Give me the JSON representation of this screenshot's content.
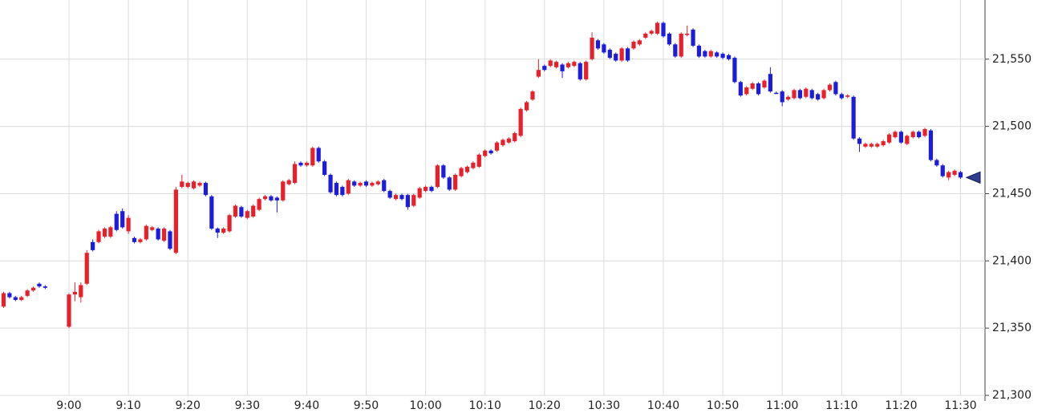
{
  "chart_data": {
    "type": "candlestick",
    "up_color": "#e8202a",
    "down_color": "#1c1cdc",
    "grid": true,
    "ylim": [
      21300,
      21594
    ],
    "yticks": [
      {
        "value": 21300,
        "label": "21,300"
      },
      {
        "value": 21350,
        "label": "21,350"
      },
      {
        "value": 21400,
        "label": "21,400"
      },
      {
        "value": 21450,
        "label": "21,450"
      },
      {
        "value": 21500,
        "label": "21,500"
      },
      {
        "value": 21550,
        "label": "21,550"
      }
    ],
    "xticks": [
      "9:00",
      "9:10",
      "9:20",
      "9:30",
      "9:40",
      "9:50",
      "10:00",
      "10:10",
      "10:20",
      "10:30",
      "10:40",
      "10:50",
      "11:00",
      "11:10",
      "11:20",
      "11:30"
    ],
    "x": [
      "8:49",
      "8:50",
      "8:51",
      "8:52",
      "8:53",
      "8:54",
      "8:55",
      "8:56",
      "9:00",
      "9:01",
      "9:02",
      "9:03",
      "9:04",
      "9:05",
      "9:06",
      "9:07",
      "9:08",
      "9:09",
      "9:10",
      "9:11",
      "9:12",
      "9:13",
      "9:14",
      "9:15",
      "9:16",
      "9:17",
      "9:18",
      "9:19",
      "9:20",
      "9:21",
      "9:22",
      "9:23",
      "9:24",
      "9:25",
      "9:26",
      "9:27",
      "9:28",
      "9:29",
      "9:30",
      "9:31",
      "9:32",
      "9:33",
      "9:34",
      "9:35",
      "9:36",
      "9:37",
      "9:38",
      "9:39",
      "9:40",
      "9:41",
      "9:42",
      "9:43",
      "9:44",
      "9:45",
      "9:46",
      "9:47",
      "9:48",
      "9:49",
      "9:50",
      "9:51",
      "9:52",
      "9:53",
      "9:54",
      "9:55",
      "9:56",
      "9:57",
      "9:58",
      "9:59",
      "10:00",
      "10:01",
      "10:02",
      "10:03",
      "10:04",
      "10:05",
      "10:06",
      "10:07",
      "10:08",
      "10:09",
      "10:10",
      "10:11",
      "10:12",
      "10:13",
      "10:14",
      "10:15",
      "10:16",
      "10:17",
      "10:18",
      "10:19",
      "10:20",
      "10:21",
      "10:22",
      "10:23",
      "10:24",
      "10:25",
      "10:26",
      "10:27",
      "10:28",
      "10:29",
      "10:30",
      "10:31",
      "10:32",
      "10:33",
      "10:34",
      "10:35",
      "10:36",
      "10:37",
      "10:38",
      "10:39",
      "10:40",
      "10:41",
      "10:42",
      "10:43",
      "10:44",
      "10:45",
      "10:46",
      "10:47",
      "10:48",
      "10:49",
      "10:50",
      "10:51",
      "10:52",
      "10:53",
      "10:54",
      "10:55",
      "10:56",
      "10:57",
      "10:58",
      "10:59",
      "11:00",
      "11:01",
      "11:02",
      "11:03",
      "11:04",
      "11:05",
      "11:06",
      "11:07",
      "11:08",
      "11:09",
      "11:10",
      "11:11",
      "11:12",
      "11:13",
      "11:14",
      "11:15",
      "11:16",
      "11:17",
      "11:18",
      "11:19",
      "11:20",
      "11:21",
      "11:22",
      "11:23",
      "11:24",
      "11:25",
      "11:26",
      "11:27",
      "11:28",
      "11:29",
      "11:30"
    ],
    "open": [
      21366,
      21376,
      21373,
      21371,
      21374,
      21378,
      21383,
      21381,
      21351,
      21375,
      21373,
      21383,
      21414,
      21414,
      21418,
      21418,
      21435,
      21437,
      21422,
      21417,
      21414,
      21416,
      21423,
      21424,
      21415,
      21422,
      21406,
      21455,
      21455,
      21454,
      21456,
      21458,
      21448,
      21424,
      21421,
      21422,
      21433,
      21440,
      21432,
      21433,
      21438,
      21446,
      21448,
      21447,
      21445,
      21457,
      21458,
      21473,
      21471,
      21471,
      21484,
      21474,
      21464,
      21458,
      21455,
      21450,
      21459,
      21456,
      21459,
      21456,
      21457,
      21460,
      21452,
      21446,
      21449,
      21449,
      21441,
      21447,
      21452,
      21455,
      21455,
      21471,
      21462,
      21453,
      21463,
      21466,
      21469,
      21470,
      21478,
      21482,
      21482,
      21486,
      21488,
      21489,
      21493,
      21512,
      21520,
      21537,
      21545,
      21545,
      21544,
      21546,
      21544,
      21545,
      21547,
      21535,
      21550,
      21564,
      21561,
      21557,
      21554,
      21549,
      21558,
      21558,
      21561,
      21566,
      21569,
      21569,
      21577,
      21569,
      21561,
      21552,
      21568,
      21572,
      21560,
      21556,
      21552,
      21555,
      21554,
      21553,
      21551,
      21533,
      21524,
      21528,
      21532,
      21529,
      21539,
      21525,
      21526,
      21520,
      21521,
      21527,
      21522,
      21527,
      21524,
      21521,
      21527,
      21533,
      21524,
      21522,
      21522,
      21491,
      21485,
      21485,
      21485,
      21486,
      21488,
      21492,
      21496,
      21487,
      21492,
      21496,
      21493,
      21497,
      21475,
      21471,
      21462,
      21464,
      21466
    ],
    "high": [
      21377,
      21377,
      21374,
      21374,
      21379,
      21381,
      21384,
      21382,
      21376,
      21384,
      21384,
      21408,
      21416,
      21423,
      21425,
      21426,
      21437,
      21439,
      21434,
      21418,
      21417,
      21427,
      21426,
      21425,
      21425,
      21423,
      21455,
      21464,
      21459,
      21460,
      21459,
      21459,
      21449,
      21425,
      21425,
      21435,
      21442,
      21441,
      21438,
      21442,
      21447,
      21449,
      21449,
      21448,
      21460,
      21461,
      21474,
      21474,
      21474,
      21485,
      21485,
      21475,
      21465,
      21459,
      21456,
      21461,
      21460,
      21459,
      21460,
      21459,
      21460,
      21461,
      21453,
      21450,
      21450,
      21450,
      21450,
      21455,
      21456,
      21456,
      21472,
      21472,
      21463,
      21465,
      21470,
      21471,
      21474,
      21480,
      21483,
      21483,
      21489,
      21491,
      21492,
      21496,
      21514,
      21519,
      21527,
      21550,
      21546,
      21550,
      21549,
      21547,
      21548,
      21549,
      21548,
      21549,
      21570,
      21565,
      21562,
      21558,
      21555,
      21559,
      21559,
      21564,
      21565,
      21570,
      21572,
      21578,
      21578,
      21570,
      21562,
      21570,
      21575,
      21573,
      21561,
      21557,
      21557,
      21556,
      21555,
      21554,
      21552,
      21534,
      21530,
      21533,
      21533,
      21535,
      21544,
      21526,
      21527,
      21523,
      21528,
      21528,
      21529,
      21528,
      21525,
      21528,
      21532,
      21534,
      21525,
      21524,
      21523,
      21492,
      21488,
      21488,
      21488,
      21490,
      21495,
      21497,
      21497,
      21494,
      21497,
      21497,
      21499,
      21498,
      21476,
      21472,
      21467,
      21468,
      21467
    ],
    "low": [
      21365,
      21372,
      21370,
      21370,
      21373,
      21377,
      21380,
      21379,
      21350,
      21370,
      21369,
      21382,
      21407,
      21413,
      21417,
      21417,
      21422,
      21424,
      21420,
      21413,
      21413,
      21415,
      21422,
      21415,
      21414,
      21408,
      21405,
      21454,
      21454,
      21453,
      21455,
      21448,
      21423,
      21417,
      21420,
      21421,
      21432,
      21432,
      21431,
      21432,
      21437,
      21445,
      21444,
      21436,
      21444,
      21456,
      21457,
      21470,
      21470,
      21470,
      21473,
      21463,
      21450,
      21448,
      21448,
      21449,
      21455,
      21455,
      21455,
      21455,
      21456,
      21451,
      21446,
      21445,
      21445,
      21438,
      21440,
      21446,
      21451,
      21451,
      21454,
      21461,
      21452,
      21452,
      21462,
      21465,
      21468,
      21469,
      21477,
      21479,
      21481,
      21485,
      21487,
      21488,
      21492,
      21511,
      21519,
      21536,
      21541,
      21544,
      21543,
      21536,
      21543,
      21544,
      21534,
      21534,
      21549,
      21557,
      21554,
      21550,
      21548,
      21548,
      21548,
      21557,
      21560,
      21565,
      21568,
      21568,
      21566,
      21560,
      21551,
      21551,
      21567,
      21559,
      21551,
      21551,
      21551,
      21551,
      21550,
      21549,
      21532,
      21522,
      21523,
      21527,
      21523,
      21528,
      21525,
      21524,
      21515,
      21519,
      21520,
      21520,
      21521,
      21520,
      21519,
      21520,
      21526,
      21523,
      21520,
      21521,
      21490,
      21481,
      21484,
      21484,
      21484,
      21485,
      21487,
      21491,
      21487,
      21486,
      21491,
      21491,
      21492,
      21474,
      21470,
      21462,
      21460,
      21463,
      21461
    ],
    "close": [
      21376,
      21373,
      21371,
      21373,
      21378,
      21380,
      21381,
      21380,
      21375,
      21377,
      21382,
      21406,
      21408,
      21422,
      21424,
      21425,
      21423,
      21425,
      21432,
      21414,
      21416,
      21426,
      21425,
      21416,
      21424,
      21409,
      21453,
      21459,
      21458,
      21459,
      21458,
      21449,
      21424,
      21421,
      21424,
      21434,
      21441,
      21433,
      21437,
      21441,
      21446,
      21448,
      21445,
      21445,
      21459,
      21460,
      21472,
      21471,
      21473,
      21484,
      21474,
      21464,
      21451,
      21449,
      21449,
      21460,
      21456,
      21458,
      21456,
      21458,
      21459,
      21452,
      21447,
      21449,
      21446,
      21440,
      21449,
      21454,
      21455,
      21452,
      21471,
      21462,
      21453,
      21464,
      21469,
      21470,
      21473,
      21479,
      21482,
      21480,
      21488,
      21490,
      21491,
      21495,
      21513,
      21518,
      21526,
      21542,
      21542,
      21549,
      21548,
      21541,
      21547,
      21548,
      21535,
      21548,
      21566,
      21558,
      21555,
      21551,
      21549,
      21558,
      21549,
      21563,
      21564,
      21569,
      21571,
      21577,
      21567,
      21561,
      21552,
      21569,
      21569,
      21560,
      21552,
      21552,
      21556,
      21552,
      21551,
      21550,
      21533,
      21523,
      21529,
      21532,
      21524,
      21534,
      21526,
      21525,
      21518,
      21522,
      21527,
      21521,
      21528,
      21521,
      21520,
      21527,
      21531,
      21524,
      21521,
      21523,
      21491,
      21487,
      21487,
      21487,
      21487,
      21489,
      21494,
      21496,
      21488,
      21493,
      21496,
      21492,
      21498,
      21475,
      21471,
      21463,
      21466,
      21467,
      21462
    ]
  }
}
